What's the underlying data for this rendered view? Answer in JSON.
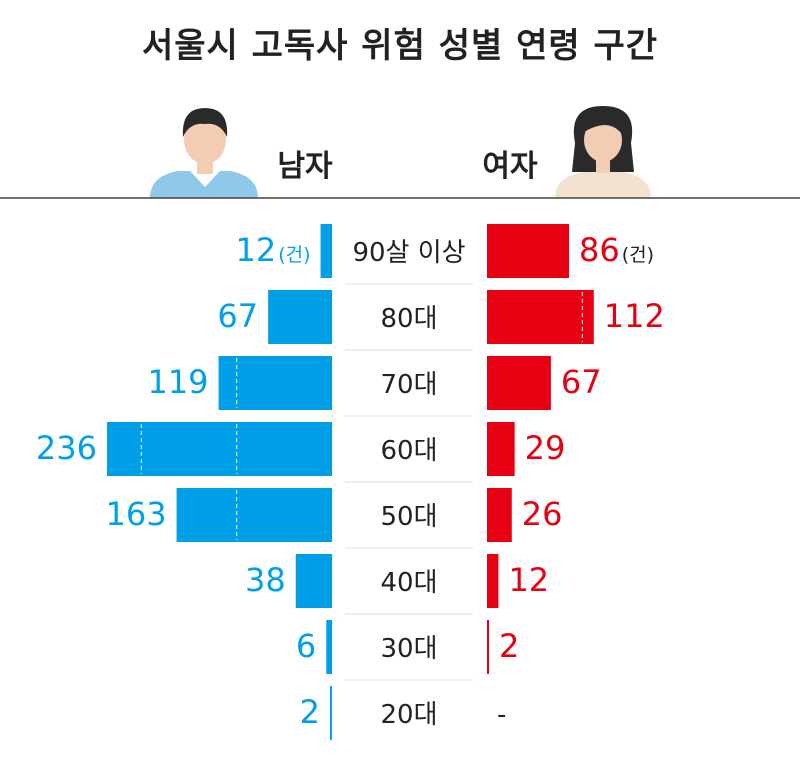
{
  "title": "서울시 고독사 위험 성별 연령 구간",
  "colors": {
    "male": "#00a0e9",
    "female": "#e60012",
    "text": "#222222",
    "divider": "#444444"
  },
  "icons": {
    "male": "man-avatar-icon",
    "female": "woman-avatar-icon"
  },
  "chart_data": {
    "type": "bar",
    "title": "서울시 고독사 위험 성별 연령 구간",
    "orientation": "horizontal-butterfly",
    "unit": "(건)",
    "categories": [
      "90살 이상",
      "80대",
      "70대",
      "60대",
      "50대",
      "40대",
      "30대",
      "20대"
    ],
    "series": [
      {
        "name": "남자",
        "values": [
          12,
          67,
          119,
          236,
          163,
          38,
          6,
          2
        ],
        "labels": [
          "12",
          "67",
          "119",
          "236",
          "163",
          "38",
          "6",
          "2"
        ]
      },
      {
        "name": "여자",
        "values": [
          86,
          112,
          67,
          29,
          26,
          12,
          2,
          0
        ],
        "labels": [
          "86",
          "112",
          "67",
          "29",
          "26",
          "12",
          "2",
          "-"
        ]
      }
    ],
    "xlim": [
      0,
      236
    ],
    "legend": "top"
  }
}
